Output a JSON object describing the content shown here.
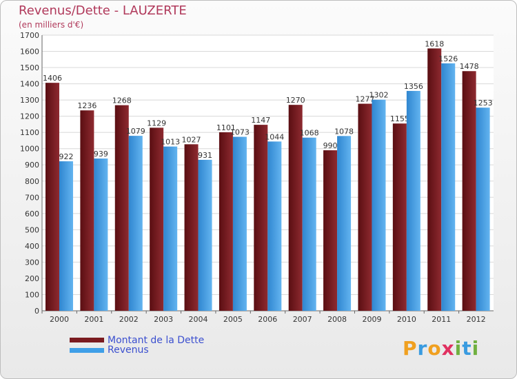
{
  "chart_data": {
    "type": "bar",
    "title": "Revenus/Dette - LAUZERTE",
    "subtitle": "(en milliers d'€)",
    "categories": [
      "2000",
      "2001",
      "2002",
      "2003",
      "2004",
      "2005",
      "2006",
      "2007",
      "2008",
      "2009",
      "2010",
      "2011",
      "2012"
    ],
    "series": [
      {
        "name": "Montant de la Dette",
        "color": "#7a1a1f",
        "values": [
          1406,
          1236,
          1268,
          1129,
          1027,
          1101,
          1147,
          1270,
          990,
          1277,
          1155,
          1618,
          1478
        ]
      },
      {
        "name": "Revenus",
        "color": "#3f9fe8",
        "values": [
          922,
          939,
          1079,
          1013,
          931,
          1073,
          1044,
          1068,
          1078,
          1302,
          1356,
          1526,
          1253
        ]
      }
    ],
    "ylim": [
      0,
      1700
    ],
    "yticks": [
      0,
      100,
      200,
      300,
      400,
      500,
      600,
      700,
      800,
      900,
      1000,
      1100,
      1200,
      1300,
      1400,
      1500,
      1600,
      1700
    ],
    "grid": true,
    "legend": "bottom-left"
  },
  "logo": {
    "letters": [
      "P",
      "r",
      "o",
      "x",
      "i",
      "t",
      "i"
    ],
    "colors": [
      "#f0a020",
      "#3a9be0",
      "#f0a020",
      "#e03060",
      "#70b040",
      "#3a9be0",
      "#70b040"
    ]
  }
}
